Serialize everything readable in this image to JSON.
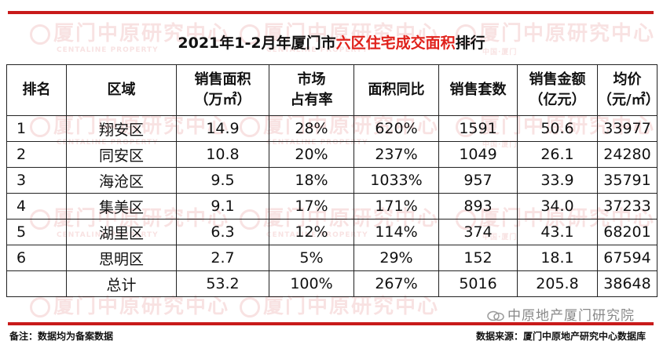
{
  "title": {
    "prefix": "2021年1-2月年厦门市",
    "highlight": "六区住宅成交面积",
    "suffix": "排行"
  },
  "watermark": {
    "text": "厦门中原研究中心",
    "sub": "CENTALINE PROPERTY",
    "sub2": "中国·厦门"
  },
  "table": {
    "headers": [
      [
        "排名"
      ],
      [
        "区域"
      ],
      [
        "销售面积",
        "（万㎡）"
      ],
      [
        "市场",
        "占有率"
      ],
      [
        "面积同比"
      ],
      [
        "销售套数"
      ],
      [
        "销售金额",
        "（亿元）"
      ],
      [
        "均价",
        "（元/㎡）"
      ]
    ],
    "rows": [
      {
        "rank": "1",
        "district": "翔安区",
        "area": "14.9",
        "share": "28%",
        "yoy": "620%",
        "units": "1591",
        "amount": "50.6",
        "price": "33977"
      },
      {
        "rank": "2",
        "district": "同安区",
        "area": "10.8",
        "share": "20%",
        "yoy": "237%",
        "units": "1049",
        "amount": "26.1",
        "price": "24280"
      },
      {
        "rank": "3",
        "district": "海沧区",
        "area": "9.5",
        "share": "18%",
        "yoy": "1033%",
        "units": "957",
        "amount": "33.9",
        "price": "35791"
      },
      {
        "rank": "4",
        "district": "集美区",
        "area": "9.1",
        "share": "17%",
        "yoy": "171%",
        "units": "893",
        "amount": "34.0",
        "price": "37233"
      },
      {
        "rank": "5",
        "district": "湖里区",
        "area": "6.3",
        "share": "12%",
        "yoy": "114%",
        "units": "374",
        "amount": "43.1",
        "price": "68201"
      },
      {
        "rank": "6",
        "district": "思明区",
        "area": "2.7",
        "share": "5%",
        "yoy": "29%",
        "units": "152",
        "amount": "18.1",
        "price": "67594"
      },
      {
        "rank": "",
        "district": "总计",
        "area": "53.2",
        "share": "100%",
        "yoy": "267%",
        "units": "5016",
        "amount": "205.8",
        "price": "38648"
      }
    ]
  },
  "footer": {
    "note": "备注：数据均为备案数据",
    "source": "数据来源：厦门中原地产研究中心数据库",
    "brand": "中原地产厦门研究院"
  },
  "colors": {
    "accent_red": "#c81a1a",
    "highlight_red": "#e0211b"
  }
}
